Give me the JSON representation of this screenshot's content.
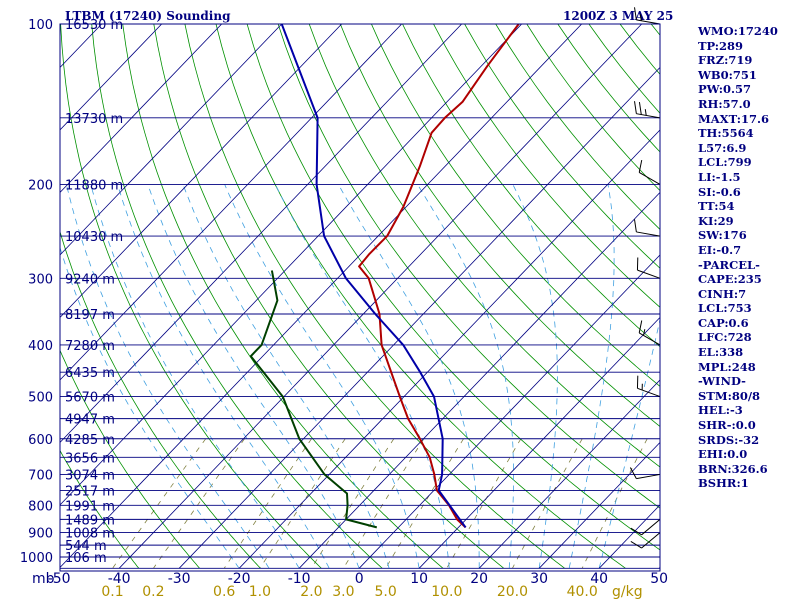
{
  "header": {
    "station": "LTBM (17240) Sounding",
    "time": "1200Z  3 MAY 25"
  },
  "indices": [
    "WMO:17240",
    "TP:289",
    "FRZ:719",
    "WB0:751",
    "PW:0.57",
    "RH:57.0",
    "MAXT:17.6",
    "TH:5564",
    "L57:6.9",
    "LCL:799",
    "LI:-1.5",
    "SI:-0.6",
    "TT:54",
    "KI:29",
    "SW:176",
    "EI:-0.7",
    "-PARCEL-",
    "CAPE:235",
    "CINH:7",
    "LCL:753",
    "CAP:0.6",
    "LFC:728",
    "EL:338",
    "MPL:248",
    "-WIND-",
    "STM:80/8",
    "HEL:-3",
    "SHR-:0.0",
    "SRDS:-32",
    "EHI:0.0",
    "BRN:326.6",
    "BSHR:1"
  ],
  "chart_data": {
    "type": "line",
    "title": "LTBM (17240) Sounding",
    "xlabel": "",
    "ylabel": "mb",
    "mixing_ratio_unit": "g/kg",
    "pressure_ticks": [
      {
        "p": 100,
        "label": "100"
      },
      {
        "p": 200,
        "label": "200"
      },
      {
        "p": 300,
        "label": "300"
      },
      {
        "p": 400,
        "label": "400"
      },
      {
        "p": 500,
        "label": "500"
      },
      {
        "p": 600,
        "label": "600"
      },
      {
        "p": 700,
        "label": "700"
      },
      {
        "p": 800,
        "label": "800"
      },
      {
        "p": 900,
        "label": "900"
      },
      {
        "p": 1000,
        "label": "1000"
      }
    ],
    "temperature_ticks": [
      -50,
      -40,
      -30,
      -20,
      -10,
      0,
      10,
      20,
      30,
      40,
      50
    ],
    "mixing_ratio_labels": [
      "0.1",
      "0.2",
      "0.6",
      "1.0",
      "2.0",
      "3.0",
      "5.0",
      "10.0",
      "20.0",
      "40.0"
    ],
    "mixing_ratio_values": [
      0.1,
      0.2,
      0.6,
      1.0,
      2.0,
      3.0,
      5.0,
      10.0,
      20.0,
      40.0
    ],
    "heights": [
      {
        "p": 100,
        "label": "16530 m"
      },
      {
        "p": 150,
        "label": "13730 m"
      },
      {
        "p": 200,
        "label": "11880 m"
      },
      {
        "p": 250,
        "label": "10430 m"
      },
      {
        "p": 300,
        "label": "9240 m"
      },
      {
        "p": 350,
        "label": "8197 m"
      },
      {
        "p": 400,
        "label": "7280 m"
      },
      {
        "p": 450,
        "label": "6435 m"
      },
      {
        "p": 500,
        "label": "5670 m"
      },
      {
        "p": 550,
        "label": "4947 m"
      },
      {
        "p": 600,
        "label": "4285 m"
      },
      {
        "p": 650,
        "label": "3656 m"
      },
      {
        "p": 700,
        "label": "3074 m"
      },
      {
        "p": 750,
        "label": "2517 m"
      },
      {
        "p": 800,
        "label": "1991 m"
      },
      {
        "p": 850,
        "label": "1489 m"
      },
      {
        "p": 900,
        "label": "1008 m"
      },
      {
        "p": 950,
        "label": "544 m"
      },
      {
        "p": 1000,
        "label": "106 m"
      }
    ],
    "series": [
      {
        "name": "temperature",
        "color": "#b00000",
        "points": [
          {
            "p": 100,
            "t": -60.5
          },
          {
            "p": 120,
            "t": -59.0
          },
          {
            "p": 140,
            "t": -57.4
          },
          {
            "p": 150,
            "t": -57.8
          },
          {
            "p": 160,
            "t": -57.6
          },
          {
            "p": 185,
            "t": -54.2
          },
          {
            "p": 220,
            "t": -50.5
          },
          {
            "p": 250,
            "t": -48.5
          },
          {
            "p": 270,
            "t": -48.6
          },
          {
            "p": 285,
            "t": -48.3
          },
          {
            "p": 300,
            "t": -44.8
          },
          {
            "p": 350,
            "t": -37.3
          },
          {
            "p": 400,
            "t": -32.0
          },
          {
            "p": 500,
            "t": -20.7
          },
          {
            "p": 550,
            "t": -15.8
          },
          {
            "p": 600,
            "t": -10.6
          },
          {
            "p": 650,
            "t": -6.0
          },
          {
            "p": 700,
            "t": -2.5
          },
          {
            "p": 750,
            "t": 0.5
          },
          {
            "p": 800,
            "t": 4.9
          },
          {
            "p": 850,
            "t": 8.5
          },
          {
            "p": 880,
            "t": 11.2
          }
        ]
      },
      {
        "name": "dewpoint",
        "color": "#004000",
        "points": [
          {
            "p": 290,
            "t": -62.2
          },
          {
            "p": 330,
            "t": -56.5
          },
          {
            "p": 400,
            "t": -52.0
          },
          {
            "p": 420,
            "t": -52.0
          },
          {
            "p": 500,
            "t": -40.2
          },
          {
            "p": 600,
            "t": -30.7
          },
          {
            "p": 700,
            "t": -20.8
          },
          {
            "p": 760,
            "t": -14.0
          },
          {
            "p": 800,
            "t": -12.0
          },
          {
            "p": 850,
            "t": -10.0
          },
          {
            "p": 880,
            "t": -3.6
          }
        ]
      },
      {
        "name": "parcel",
        "color": "#0000a8",
        "points": [
          {
            "p": 100,
            "t": -100.0
          },
          {
            "p": 150,
            "t": -79.0
          },
          {
            "p": 200,
            "t": -68.5
          },
          {
            "p": 250,
            "t": -59.0
          },
          {
            "p": 300,
            "t": -48.6
          },
          {
            "p": 350,
            "t": -38.0
          },
          {
            "p": 400,
            "t": -28.4
          },
          {
            "p": 450,
            "t": -21.2
          },
          {
            "p": 500,
            "t": -15.0
          },
          {
            "p": 600,
            "t": -6.8
          },
          {
            "p": 700,
            "t": -1.2
          },
          {
            "p": 750,
            "t": 0.8
          },
          {
            "p": 800,
            "t": 5.0
          },
          {
            "p": 880,
            "t": 11.2
          }
        ]
      }
    ],
    "wind_barbs": [
      {
        "p": 100,
        "dir": 280,
        "spd": 15
      },
      {
        "p": 150,
        "dir": 280,
        "spd": 25
      },
      {
        "p": 200,
        "dir": 300,
        "spd": 10
      },
      {
        "p": 250,
        "dir": 280,
        "spd": 10
      },
      {
        "p": 300,
        "dir": 290,
        "spd": 10
      },
      {
        "p": 400,
        "dir": 300,
        "spd": 15
      },
      {
        "p": 500,
        "dir": 290,
        "spd": 15
      },
      {
        "p": 700,
        "dir": 260,
        "spd": 10
      },
      {
        "p": 850,
        "dir": 230,
        "spd": 10
      },
      {
        "p": 900,
        "dir": 230,
        "spd": 10
      }
    ],
    "colors": {
      "isobar": "#000080",
      "isotherm": "#000080",
      "dry_adiabat": "#009000",
      "moist_adiabat": "#40a0e0",
      "mixing_ratio": "#808040",
      "mixing_label": "#b09000",
      "frame": "#000080"
    },
    "pressure_range": [
      100,
      1050
    ],
    "log_pressure": true,
    "skew_t": true,
    "grid": true
  }
}
